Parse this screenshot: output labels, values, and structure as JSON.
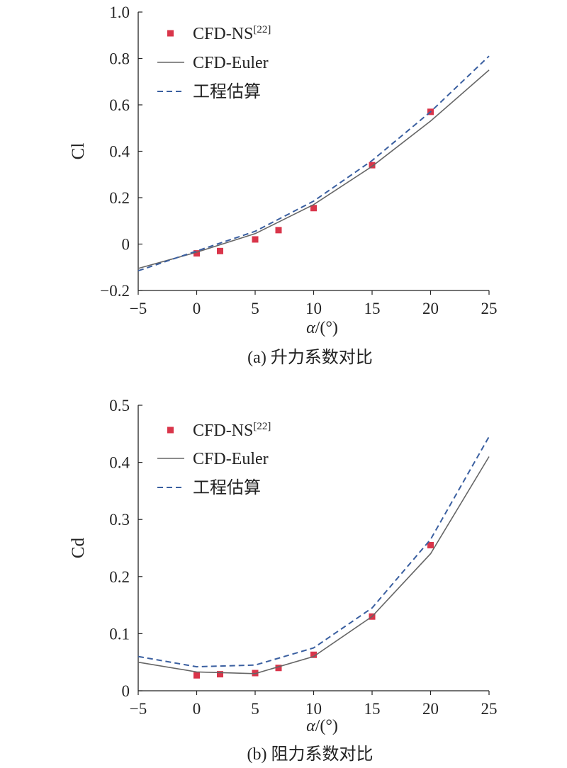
{
  "chart_data": [
    {
      "type": "line",
      "caption": "(a) 升力系数对比",
      "xlabel": "α/(°)",
      "ylabel": "Cl",
      "xlim": [
        -5,
        25
      ],
      "ylim": [
        -0.2,
        1.0
      ],
      "xticks": [
        "−5",
        "0",
        "5",
        "10",
        "15",
        "20",
        "25"
      ],
      "xtick_values": [
        -5,
        0,
        5,
        10,
        15,
        20,
        25
      ],
      "yticks": [
        "−0.2",
        "0",
        "0.2",
        "0.4",
        "0.6",
        "0.8",
        "1.0"
      ],
      "ytick_values": [
        -0.2,
        0,
        0.2,
        0.4,
        0.6,
        0.8,
        1.0
      ],
      "legend_position": "top-left",
      "series": [
        {
          "name": "CFD-NS",
          "name_sup": "[22]",
          "style": "markers",
          "color": "#d9354a",
          "x": [
            0,
            2,
            5,
            7,
            10,
            15,
            20
          ],
          "y": [
            -0.04,
            -0.03,
            0.02,
            0.06,
            0.155,
            0.34,
            0.57
          ]
        },
        {
          "name": "CFD-Euler",
          "style": "solid",
          "color": "#666666",
          "x": [
            -5,
            0,
            5,
            10,
            15,
            20,
            25
          ],
          "y": [
            -0.105,
            -0.035,
            0.045,
            0.17,
            0.335,
            0.53,
            0.75
          ]
        },
        {
          "name": "工程估算",
          "style": "dashed",
          "color": "#3a5fa0",
          "x": [
            -5,
            0,
            5,
            10,
            15,
            20,
            25
          ],
          "y": [
            -0.115,
            -0.03,
            0.055,
            0.185,
            0.36,
            0.57,
            0.81
          ]
        }
      ]
    },
    {
      "type": "line",
      "caption": "(b) 阻力系数对比",
      "xlabel": "α/(°)",
      "ylabel": "Cd",
      "xlim": [
        -5,
        25
      ],
      "ylim": [
        0,
        0.5
      ],
      "xticks": [
        "−5",
        "0",
        "5",
        "10",
        "15",
        "20",
        "25"
      ],
      "xtick_values": [
        -5,
        0,
        5,
        10,
        15,
        20,
        25
      ],
      "yticks": [
        "0",
        "0.1",
        "0.2",
        "0.3",
        "0.4",
        "0.5"
      ],
      "ytick_values": [
        0,
        0.1,
        0.2,
        0.3,
        0.4,
        0.5
      ],
      "legend_position": "top-left",
      "series": [
        {
          "name": "CFD-NS",
          "name_sup": "[22]",
          "style": "markers",
          "color": "#d9354a",
          "x": [
            0,
            2,
            5,
            7,
            10,
            15,
            20
          ],
          "y": [
            0.027,
            0.029,
            0.031,
            0.04,
            0.063,
            0.13,
            0.255
          ]
        },
        {
          "name": "CFD-Euler",
          "style": "solid",
          "color": "#666666",
          "x": [
            -5,
            0,
            5,
            10,
            15,
            20,
            25
          ],
          "y": [
            0.05,
            0.033,
            0.03,
            0.06,
            0.13,
            0.24,
            0.41
          ]
        },
        {
          "name": "工程估算",
          "style": "dashed",
          "color": "#3a5fa0",
          "x": [
            -5,
            0,
            5,
            10,
            15,
            20,
            25
          ],
          "y": [
            0.06,
            0.042,
            0.045,
            0.075,
            0.145,
            0.265,
            0.445
          ]
        }
      ]
    }
  ]
}
